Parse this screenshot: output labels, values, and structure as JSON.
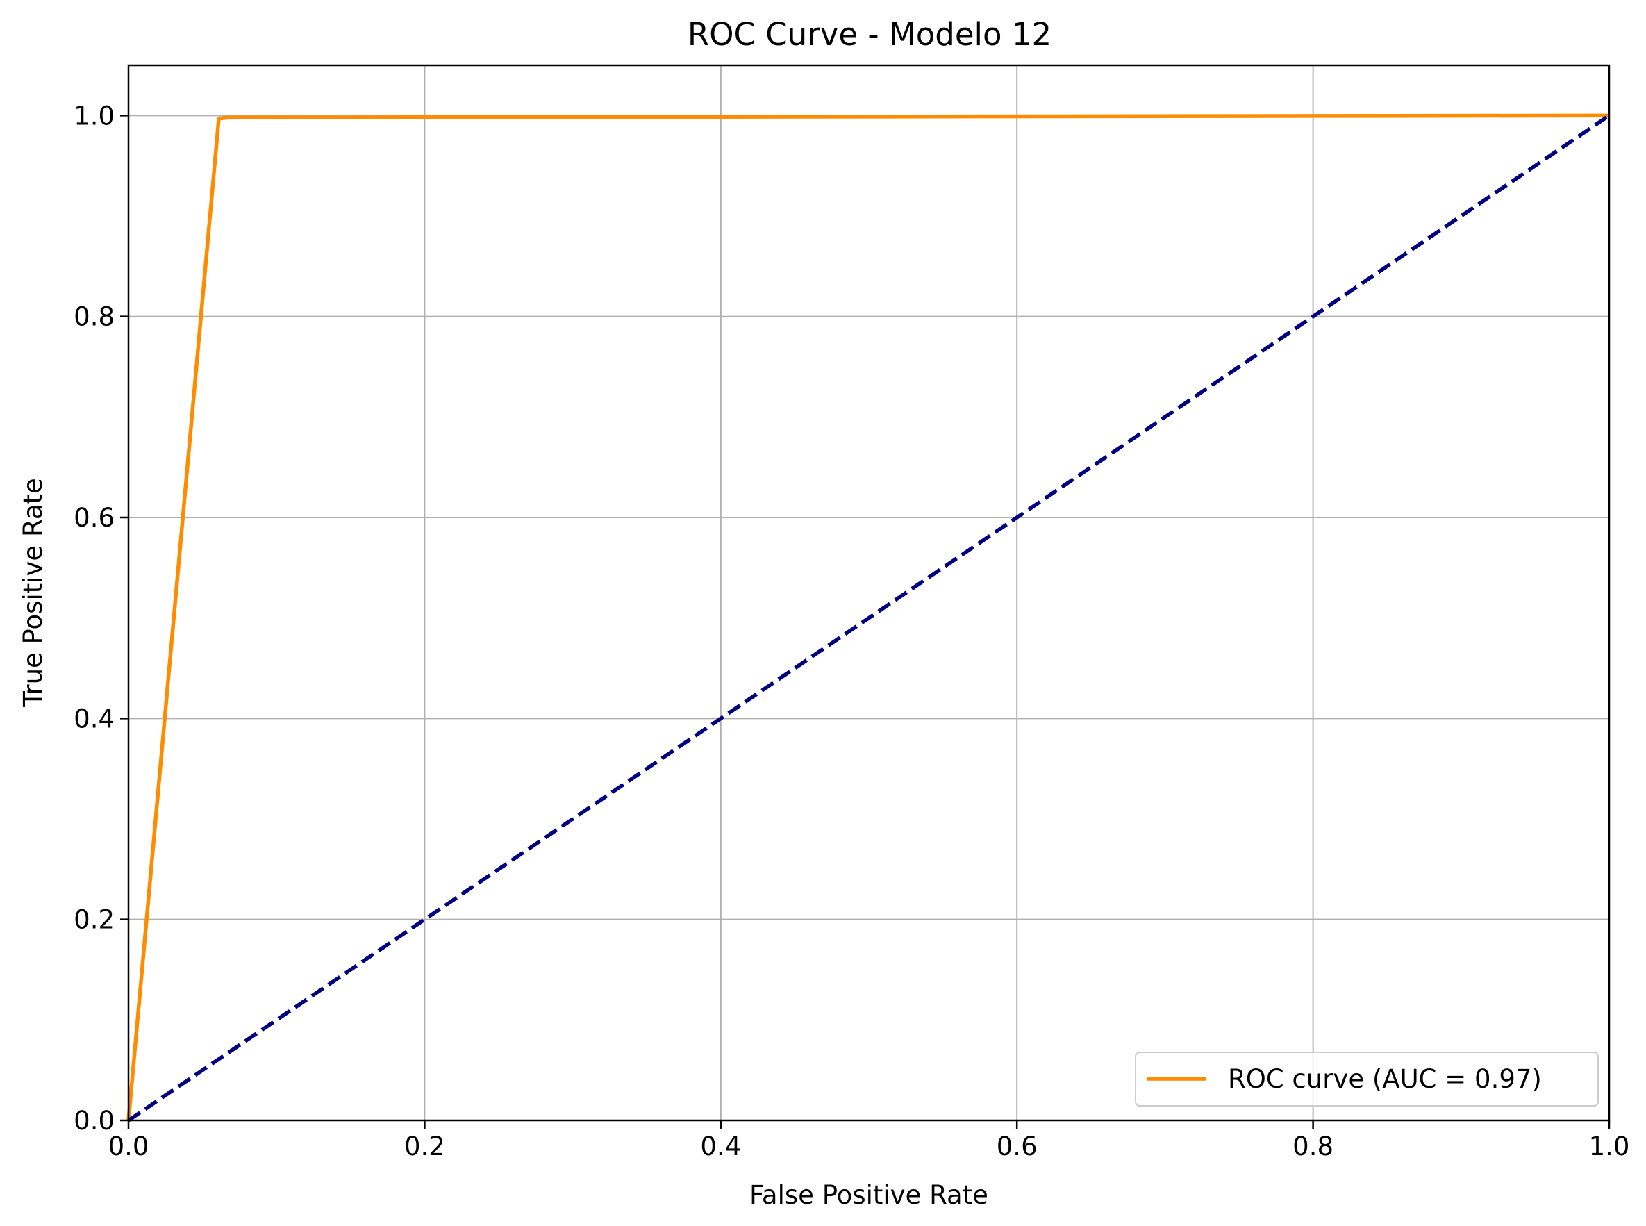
{
  "chart_data": {
    "type": "line",
    "title": "ROC Curve - Modelo 12",
    "xlabel": "False Positive Rate",
    "ylabel": "True Positive Rate",
    "xlim": [
      0.0,
      1.0
    ],
    "ylim": [
      0.0,
      1.05
    ],
    "xticks": [
      "0.0",
      "0.2",
      "0.4",
      "0.6",
      "0.8",
      "1.0"
    ],
    "yticks": [
      "0.0",
      "0.2",
      "0.4",
      "0.6",
      "0.8",
      "1.0"
    ],
    "grid": true,
    "legend_position": "lower-right",
    "series": [
      {
        "name": "ROC curve (AUC = 0.97)",
        "color": "#ff8c00",
        "style": "solid",
        "x": [
          0.0,
          0.061,
          0.068,
          1.0
        ],
        "y": [
          0.0,
          0.997,
          0.998,
          1.0
        ]
      },
      {
        "name": "",
        "color": "#000080",
        "style": "dashed",
        "x": [
          0.0,
          1.0
        ],
        "y": [
          0.0,
          1.0
        ]
      }
    ]
  }
}
